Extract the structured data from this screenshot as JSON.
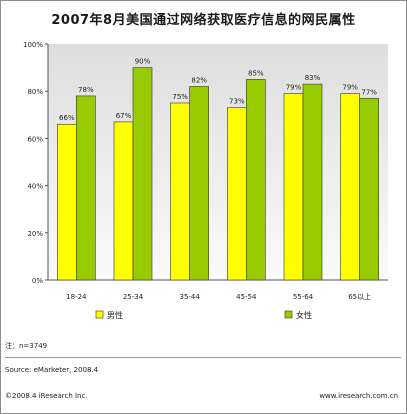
{
  "page": {
    "title": "2007年8月美国通过网络获取医疗信息的网民属性",
    "note": "注：n=3749",
    "source": "Source: eMarketer, 2008.4",
    "copyright": "©2008.4 iResearch Inc.",
    "website": "www.iresearch.com.cn"
  },
  "chart_data": {
    "type": "bar",
    "title": "2007年8月美国通过网络获取医疗信息的网民属性",
    "categories": [
      "18-24",
      "25-34",
      "35-44",
      "45-54",
      "55-64",
      "65以上"
    ],
    "series": [
      {
        "name": "男性",
        "color": "#ffff00",
        "values": [
          66,
          67,
          75,
          73,
          79,
          79
        ],
        "labels": [
          "66%",
          "67%",
          "75%",
          "73%",
          "79%",
          "79%"
        ]
      },
      {
        "name": "女性",
        "color": "#99cc00",
        "values": [
          78,
          90,
          82,
          85,
          83,
          77
        ],
        "labels": [
          "78%",
          "90%",
          "82%",
          "85%",
          "83%",
          "77%"
        ]
      }
    ],
    "y_ticks": [
      "0%",
      "20%",
      "40%",
      "60%",
      "80%",
      "100%"
    ],
    "ylim": [
      0,
      100
    ],
    "grid": false,
    "legend": "bottom"
  }
}
